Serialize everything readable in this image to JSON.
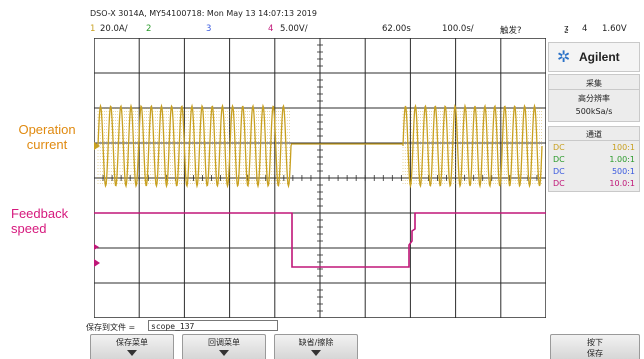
{
  "header": {
    "model": "DSO-X 3014A, MY54100718: Mon May 13 14:07:13 2019",
    "ch1_num": "1",
    "ch1_scale": "20.0A/",
    "ch2_num": "2",
    "ch3_num": "3",
    "ch4_num": "4",
    "ch4_scale": "5.00V/",
    "time_offset": "62.00s",
    "time_scale": "100.0s/",
    "trigger_status": "触发?",
    "trigger_source_num": "4",
    "trigger_level": "1.60V"
  },
  "annotations": {
    "operation_current": [
      "Operation",
      "current"
    ],
    "feedback_speed": [
      "Feedback",
      "speed"
    ]
  },
  "right_panel": {
    "brand": "Agilent",
    "acquire_title": "采集",
    "acquire_mode": "高分辨率",
    "sample_rate": "500kSa/s",
    "channels_title": "通道",
    "channels": [
      {
        "coupling": "DC",
        "ratio": "100:1",
        "color": "#c8a020"
      },
      {
        "coupling": "DC",
        "ratio": "1.00:1",
        "color": "#2a9a2a"
      },
      {
        "coupling": "DC",
        "ratio": "500:1",
        "color": "#3a5adf"
      },
      {
        "coupling": "DC",
        "ratio": "10.0:1",
        "color": "#c01678"
      }
    ]
  },
  "bottom": {
    "file_label": "保存到文件 =",
    "file_value": "scope_137",
    "softkeys": [
      "保存菜单",
      "回调菜单",
      "缺省/擦除"
    ],
    "press_key": [
      "按下",
      "保存"
    ]
  },
  "colors": {
    "ch1": "#c8a020",
    "ch4": "#c01678",
    "grid": "#2c2c2c"
  }
}
